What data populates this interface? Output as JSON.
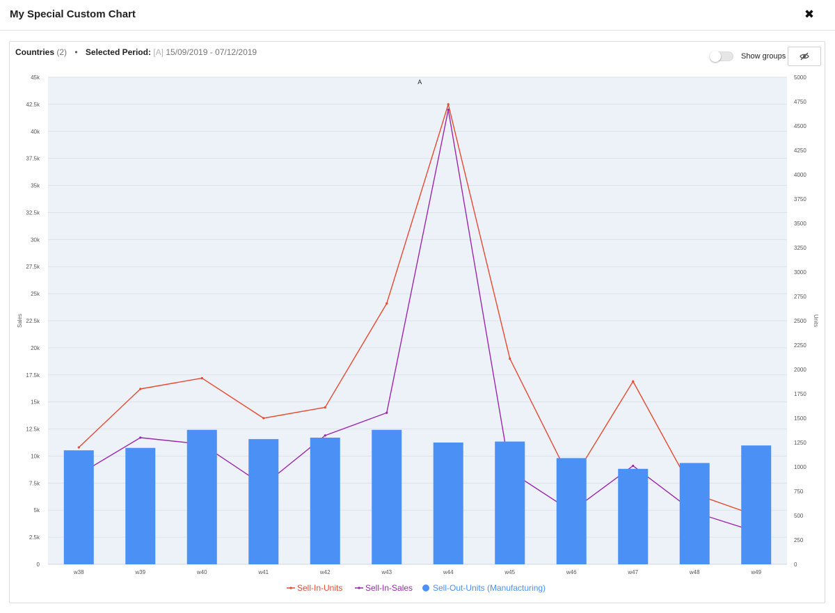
{
  "modal": {
    "title": "My Special Custom Chart",
    "close_glyph": "✖"
  },
  "header": {
    "countries_label": "Countries",
    "countries_count": "(2)",
    "separator": "•",
    "period_label": "Selected Period:",
    "period_tag": "[A]",
    "period_range": "15/09/2019 - 07/12/2019",
    "show_groups_label": "Show groups",
    "hide_icon": "eye-slash-icon"
  },
  "colors": {
    "sell_in_units": "#e8492f",
    "sell_in_sales": "#9b27b0",
    "sell_out_units": "#4a90f5",
    "plot_bg": "#edf1f8",
    "grid": "#dde2ea"
  },
  "chart_data": {
    "type": "bar",
    "categories": [
      "w38",
      "w39",
      "w40",
      "w41",
      "w42",
      "w43",
      "w44",
      "w45",
      "w46",
      "w47",
      "w48",
      "w49"
    ],
    "series": [
      {
        "name": "Sell-In-Units",
        "type": "line",
        "axis": "left",
        "values": [
          10800,
          16200,
          17200,
          13500,
          14500,
          24100,
          42500,
          19000,
          7600,
          16900,
          6500,
          4500
        ]
      },
      {
        "name": "Sell-In-Sales",
        "type": "line",
        "axis": "left",
        "values": [
          8300,
          11700,
          11100,
          7300,
          11900,
          14000,
          42000,
          8600,
          4900,
          9100,
          4800,
          3000
        ]
      },
      {
        "name": "Sell-Out-Units (Manufacturing)",
        "type": "bar",
        "axis": "right",
        "values": [
          1170,
          1195,
          1380,
          1285,
          1300,
          1380,
          1250,
          1260,
          1090,
          980,
          1040,
          1220
        ]
      }
    ],
    "annotations": [
      {
        "x": "w44",
        "text": "A"
      }
    ],
    "ylabel": "Sales",
    "ylim": [
      0,
      45000
    ],
    "yticks": [
      "0",
      "2.5k",
      "5k",
      "7.5k",
      "10k",
      "12.5k",
      "15k",
      "17.5k",
      "20k",
      "22.5k",
      "25k",
      "27.5k",
      "30k",
      "32.5k",
      "35k",
      "37.5k",
      "40k",
      "42.5k",
      "45k"
    ],
    "y2label": "Units",
    "y2lim": [
      0,
      5000
    ],
    "y2ticks": [
      "0",
      "250",
      "500",
      "750",
      "1000",
      "1250",
      "1500",
      "1750",
      "2000",
      "2250",
      "2500",
      "2750",
      "3000",
      "3250",
      "3500",
      "3750",
      "4000",
      "4250",
      "4500",
      "4750",
      "5000"
    ],
    "grid": true,
    "legend": "bottom-center"
  }
}
